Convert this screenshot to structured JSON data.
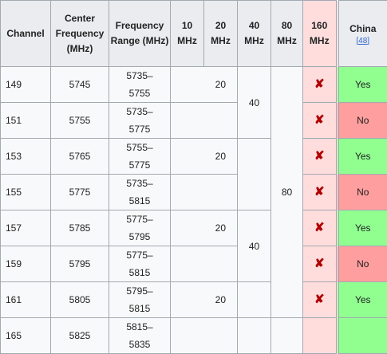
{
  "headers": {
    "channel": "Channel",
    "center_frequency": "Center Frequency (MHz)",
    "frequency_range": "Frequency Range (MHz)",
    "w10": "10 MHz",
    "w20": "20 MHz",
    "w40": "40 MHz",
    "w80": "80 MHz",
    "w160": "160 MHz",
    "china": "China",
    "china_ref": "[48]"
  },
  "rows": [
    {
      "channel": "149",
      "center": "5745",
      "range_top": "5735–",
      "range_bottom": "5755",
      "w20": "20",
      "w160": "✘",
      "china": "Yes"
    },
    {
      "channel": "151",
      "center": "5755",
      "range_top": "5735–",
      "range_bottom": "5775",
      "w160": "✘",
      "china": "No"
    },
    {
      "channel": "153",
      "center": "5765",
      "range_top": "5755–",
      "range_bottom": "5775",
      "w20": "20",
      "w160": "✘",
      "china": "Yes"
    },
    {
      "channel": "155",
      "center": "5775",
      "range_top": "5735–",
      "range_bottom": "5815",
      "w160": "✘",
      "china": "No"
    },
    {
      "channel": "157",
      "center": "5785",
      "range_top": "5775–",
      "range_bottom": "5795",
      "w20": "20",
      "w160": "✘",
      "china": "Yes"
    },
    {
      "channel": "159",
      "center": "5795",
      "range_top": "5775–",
      "range_bottom": "5815",
      "w160": "✘",
      "china": "No"
    },
    {
      "channel": "161",
      "center": "5805",
      "range_top": "5795–",
      "range_bottom": "5815",
      "w20": "20",
      "w160": "✘",
      "china": "Yes"
    },
    {
      "channel": "165",
      "center": "5825",
      "range_top": "5815–",
      "range_bottom": "5835"
    }
  ],
  "spans": {
    "w40_first": "40",
    "w40_second": "40",
    "w80": "80"
  }
}
